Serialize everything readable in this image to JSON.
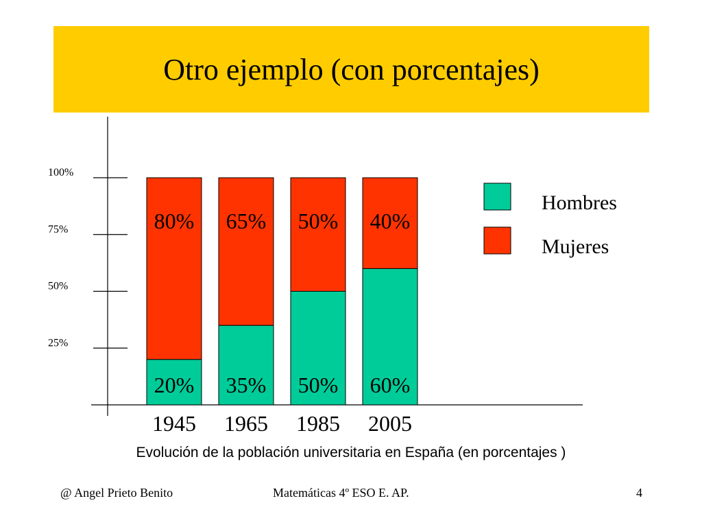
{
  "slide": {
    "title": "Otro ejemplo (con porcentajes)",
    "caption": "Evolución de la población universitaria en España (en porcentajes )",
    "footer_left": "@  Angel Prieto Benito",
    "footer_center": "Matemáticas  4º ESO  E. AP.",
    "footer_right": "4",
    "banner_color": "#ffcc00"
  },
  "chart_data": {
    "type": "bar",
    "stacked": true,
    "categories": [
      "1945",
      "1965",
      "1985",
      "2005"
    ],
    "series": [
      {
        "name": "Hombres",
        "values": [
          20,
          35,
          50,
          60
        ],
        "labels": [
          "20%",
          "35%",
          "50%",
          "60%"
        ],
        "color": "#00cc99"
      },
      {
        "name": "Mujeres",
        "values": [
          80,
          65,
          50,
          40
        ],
        "labels": [
          "80%",
          "65%",
          "50%",
          "40%"
        ],
        "color": "#ff3300"
      }
    ],
    "ylim": [
      0,
      100
    ],
    "y_ticks": [
      25,
      50,
      75,
      100
    ],
    "y_tick_labels": [
      "25%",
      "50%",
      "75%",
      "100%"
    ],
    "xlabel": "",
    "ylabel": "",
    "grid": false,
    "legend": "right"
  }
}
